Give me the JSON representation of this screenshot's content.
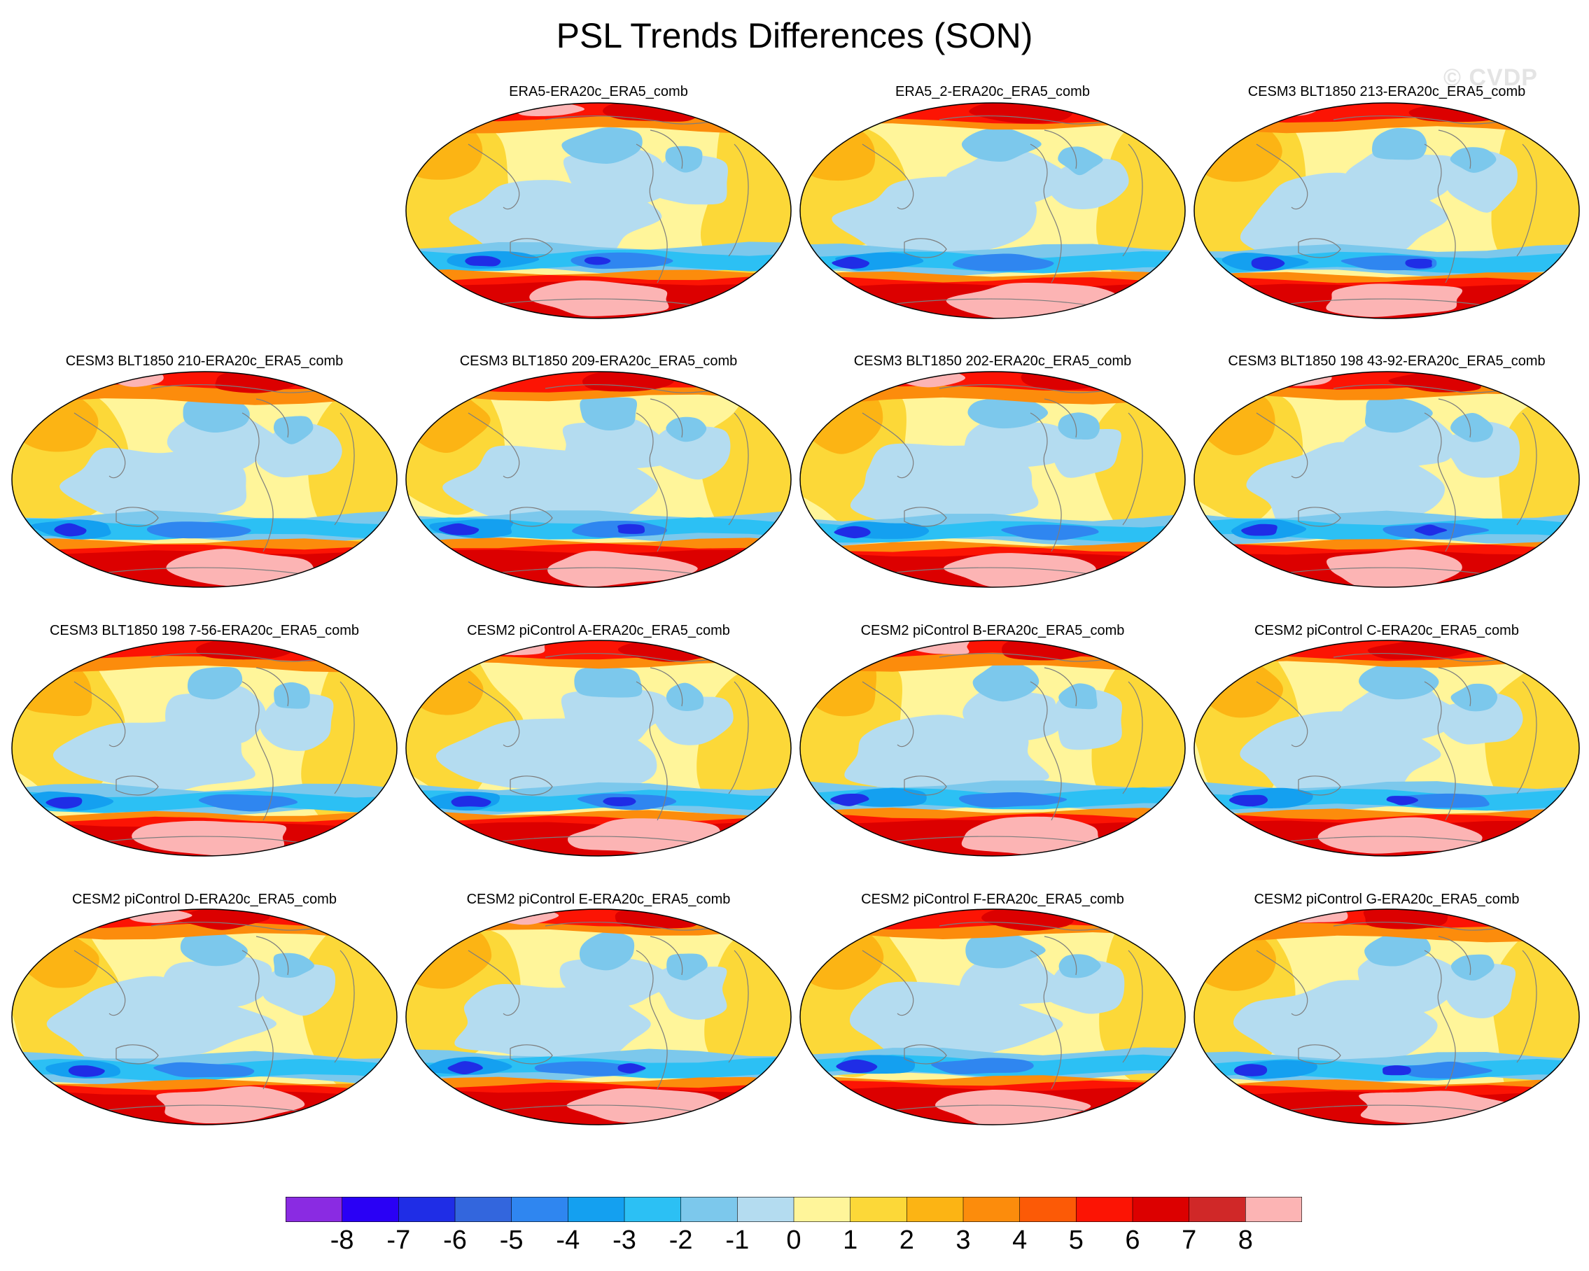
{
  "title": "PSL Trends Differences (SON)",
  "watermark": "© CVDP",
  "panels": [
    {
      "title": "ERA5-ERA20c_ERA5_comb",
      "variant": 0
    },
    {
      "title": "ERA5_2-ERA20c_ERA5_comb",
      "variant": 1
    },
    {
      "title": "CESM3 BLT1850 213-ERA20c_ERA5_comb",
      "variant": 2
    },
    {
      "title": "CESM3 BLT1850 210-ERA20c_ERA5_comb",
      "variant": 3
    },
    {
      "title": "CESM3 BLT1850 209-ERA20c_ERA5_comb",
      "variant": 4
    },
    {
      "title": "CESM3 BLT1850 202-ERA20c_ERA5_comb",
      "variant": 5
    },
    {
      "title": "CESM3 BLT1850 198 43-92-ERA20c_ERA5_comb",
      "variant": 6
    },
    {
      "title": "CESM3 BLT1850 198 7-56-ERA20c_ERA5_comb",
      "variant": 7
    },
    {
      "title": "CESM2 piControl A-ERA20c_ERA5_comb",
      "variant": 8
    },
    {
      "title": "CESM2 piControl B-ERA20c_ERA5_comb",
      "variant": 9
    },
    {
      "title": "CESM2 piControl C-ERA20c_ERA5_comb",
      "variant": 10
    },
    {
      "title": "CESM2 piControl D-ERA20c_ERA5_comb",
      "variant": 11
    },
    {
      "title": "CESM2 piControl E-ERA20c_ERA5_comb",
      "variant": 12
    },
    {
      "title": "CESM2 piControl F-ERA20c_ERA5_comb",
      "variant": 13
    },
    {
      "title": "CESM2 piControl G-ERA20c_ERA5_comb",
      "variant": 14
    }
  ],
  "colorbar": {
    "colors": [
      "#8a2be2",
      "#2a00f5",
      "#1f2de6",
      "#3366dd",
      "#2f86f0",
      "#14a0f0",
      "#2cc0f4",
      "#7cc8ec",
      "#b4dcf0",
      "#fff59a",
      "#fcd838",
      "#fcb414",
      "#fc8c0c",
      "#fc5a06",
      "#fc1404",
      "#dc0000",
      "#d02828",
      "#fcb4b4"
    ],
    "labels": [
      "-8",
      "-7",
      "-6",
      "-5",
      "-4",
      "-3",
      "-2",
      "-1",
      "0",
      "1",
      "2",
      "3",
      "4",
      "5",
      "6",
      "7",
      "8"
    ]
  }
}
